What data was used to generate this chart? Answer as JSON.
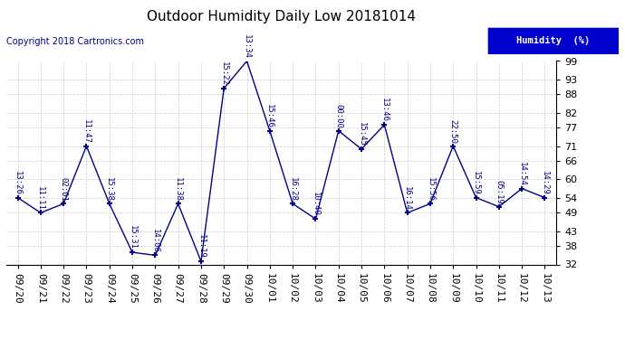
{
  "title": "Outdoor Humidity Daily Low 20181014",
  "copyright_text": "Copyright 2018 Cartronics.com",
  "legend_label": "Humidity  (%)",
  "ylim": [
    32,
    99
  ],
  "yticks": [
    32,
    38,
    43,
    49,
    54,
    60,
    66,
    71,
    77,
    82,
    88,
    93,
    99
  ],
  "background_color": "#ffffff",
  "plot_bg_color": "#ffffff",
  "grid_color": "#cccccc",
  "line_color": "#00008B",
  "x_labels": [
    "09/20",
    "09/21",
    "09/22",
    "09/23",
    "09/24",
    "09/25",
    "09/26",
    "09/27",
    "09/28",
    "09/29",
    "09/30",
    "10/01",
    "10/02",
    "10/03",
    "10/04",
    "10/05",
    "10/06",
    "10/07",
    "10/08",
    "10/09",
    "10/10",
    "10/11",
    "10/12",
    "10/13"
  ],
  "y_vals": [
    54,
    49,
    52,
    71,
    52,
    36,
    35,
    52,
    33,
    90,
    99,
    76,
    52,
    47,
    76,
    70,
    78,
    49,
    52,
    71,
    54,
    51,
    57,
    54
  ],
  "time_labels": [
    "13:26",
    "11:11",
    "02:01",
    "11:47",
    "15:38",
    "15:31",
    "14:06",
    "11:38",
    "11:19",
    "15:22",
    "13:34",
    "15:46",
    "16:28",
    "10:40",
    "00:00",
    "15:45",
    "13:46",
    "16:14",
    "15:56",
    "22:50",
    "15:59",
    "05:19",
    "14:54",
    "14:29"
  ],
  "title_fontsize": 11,
  "tick_fontsize": 8,
  "annot_fontsize": 6.5,
  "copyright_fontsize": 7
}
